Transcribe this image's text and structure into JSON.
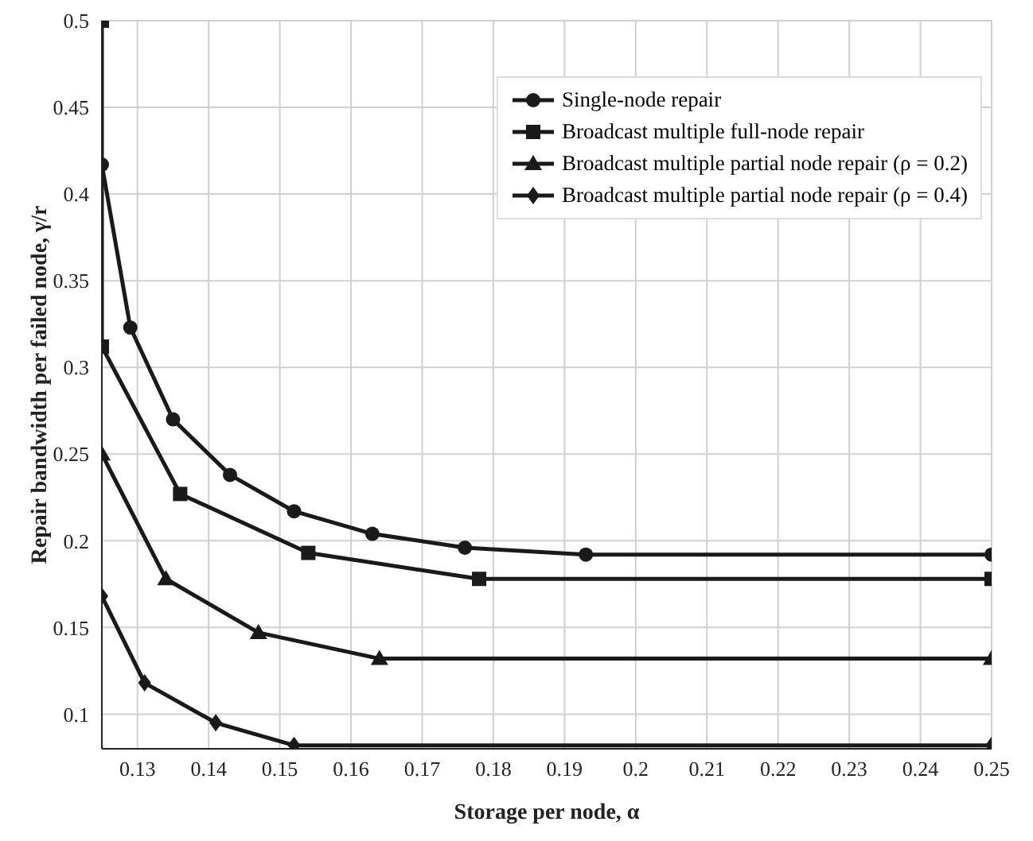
{
  "chart_data": {
    "type": "line",
    "xlabel": "Storage per node, α",
    "ylabel": "Repair bandwidth per failed node, γ/r",
    "xlim": [
      0.125,
      0.25
    ],
    "ylim": [
      0.08,
      0.5
    ],
    "xticks": [
      0.13,
      0.14,
      0.15,
      0.16,
      0.17,
      0.18,
      0.19,
      0.2,
      0.21,
      0.22,
      0.23,
      0.24,
      0.25
    ],
    "yticks": [
      0.1,
      0.15,
      0.2,
      0.25,
      0.3,
      0.35,
      0.4,
      0.45,
      0.5
    ],
    "grid": true,
    "legend": "top right",
    "line_style": "solid",
    "series": [
      {
        "name": "Single-node repair",
        "color": "#1a1a1a",
        "marker": "circle",
        "x": [
          0.125,
          0.129,
          0.135,
          0.143,
          0.152,
          0.163,
          0.176,
          0.193,
          0.25
        ],
        "values": [
          0.417,
          0.323,
          0.27,
          0.238,
          0.217,
          0.204,
          0.196,
          0.192,
          0.192
        ]
      },
      {
        "name": "Broadcast multiple full-node repair",
        "color": "#1a1a1a",
        "marker": "square",
        "x": [
          0.125,
          0.125,
          0.136,
          0.154,
          0.178,
          0.25
        ],
        "values": [
          0.5,
          0.312,
          0.227,
          0.193,
          0.178,
          0.178
        ]
      },
      {
        "name": "Broadcast multiple partial node repair (ρ = 0.2)",
        "color": "#1a1a1a",
        "marker": "triangle",
        "x": [
          0.125,
          0.134,
          0.147,
          0.164,
          0.25
        ],
        "values": [
          0.25,
          0.178,
          0.147,
          0.132,
          0.132
        ]
      },
      {
        "name": "Broadcast multiple partial node repair (ρ = 0.4)",
        "color": "#1a1a1a",
        "marker": "diamond",
        "x": [
          0.125,
          0.131,
          0.141,
          0.152,
          0.25
        ],
        "values": [
          0.168,
          0.118,
          0.095,
          0.082,
          0.082
        ]
      }
    ]
  }
}
